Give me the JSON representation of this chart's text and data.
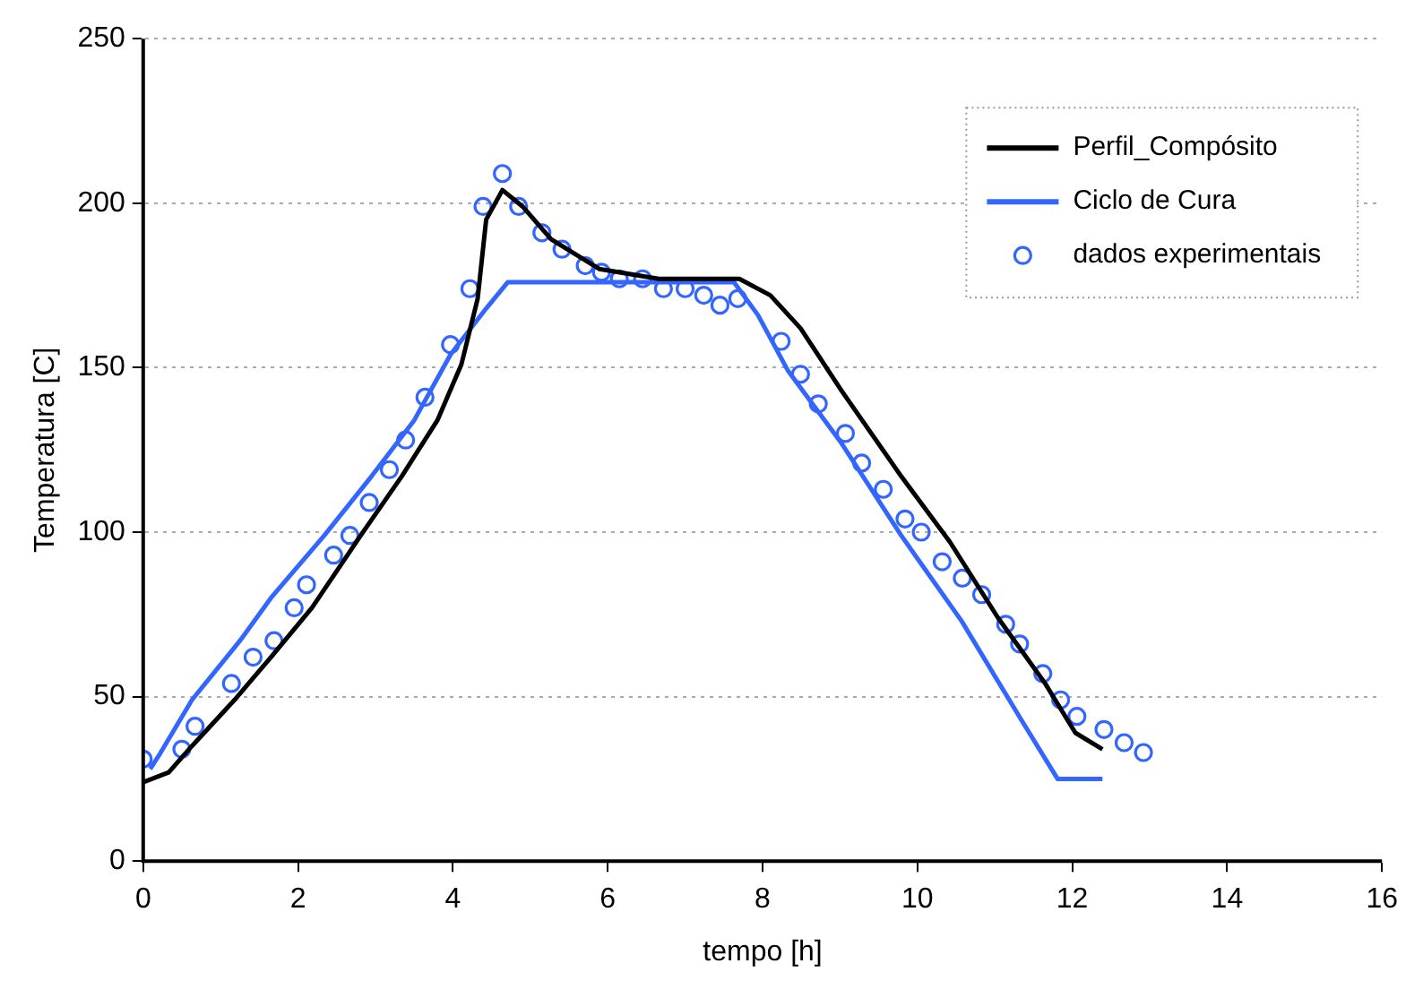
{
  "chart_data": {
    "type": "line",
    "xlabel": "tempo [h]",
    "ylabel": "Temperatura [C]",
    "xlim": [
      0,
      16
    ],
    "xticks": [
      0,
      2,
      4,
      6,
      8,
      10,
      12,
      14,
      16
    ],
    "ylim": [
      0,
      250
    ],
    "yticks": [
      0,
      50,
      100,
      150,
      200,
      250
    ],
    "grid": "y",
    "legend": "top right",
    "series": [
      {
        "name": "Perfil_Compósito",
        "color": "#000000",
        "marker": "none",
        "x": [
          0,
          0.33,
          0.63,
          1.18,
          1.65,
          2.18,
          2.81,
          3.34,
          3.8,
          4.11,
          4.32,
          4.43,
          4.64,
          4.9,
          5.27,
          5.89,
          6.66,
          7.7,
          8.1,
          8.49,
          9.02,
          9.79,
          10.42,
          11.04,
          11.65,
          12.04,
          12.39
        ],
        "values": [
          24,
          27,
          35,
          49,
          62,
          77,
          99,
          117,
          134,
          151,
          171,
          195,
          204,
          199,
          189,
          180,
          177,
          177,
          172,
          162,
          143,
          117,
          97,
          74,
          54,
          39,
          34
        ]
      },
      {
        "name": "Ciclo de Cura",
        "color": "#3366ff",
        "marker": "none",
        "x": [
          0.09,
          0.2,
          0.63,
          1.25,
          1.65,
          2.34,
          2.95,
          3.5,
          3.97,
          4.43,
          4.71,
          7.63,
          7.94,
          8.33,
          9.02,
          9.79,
          10.57,
          11.34,
          11.81,
          12.39
        ],
        "values": [
          28,
          32,
          49,
          67,
          80,
          99,
          117,
          134,
          154,
          168,
          176,
          176,
          166,
          149,
          127,
          99,
          73,
          43,
          25,
          25
        ]
      },
      {
        "name": "dados experimentais",
        "type": "scatter",
        "color": "#3366ff",
        "marker": "circle",
        "x": [
          0,
          0.5,
          0.67,
          1.14,
          1.42,
          1.69,
          1.95,
          2.11,
          2.46,
          2.67,
          2.92,
          3.18,
          3.39,
          3.64,
          3.97,
          4.22,
          4.39,
          4.64,
          4.85,
          5.15,
          5.41,
          5.71,
          5.92,
          6.15,
          6.45,
          6.72,
          7.0,
          7.24,
          7.45,
          7.68,
          8.24,
          8.49,
          8.72,
          9.07,
          9.28,
          9.56,
          9.84,
          10.05,
          10.32,
          10.58,
          10.83,
          11.14,
          11.32,
          11.62,
          11.85,
          12.06,
          12.41,
          12.67,
          12.92
        ],
        "values": [
          31,
          34,
          41,
          54,
          62,
          67,
          77,
          84,
          93,
          99,
          109,
          119,
          128,
          141,
          157,
          174,
          199,
          209,
          199,
          191,
          186,
          181,
          179,
          177,
          177,
          174,
          174,
          172,
          169,
          171,
          158,
          148,
          139,
          130,
          121,
          113,
          104,
          100,
          91,
          86,
          81,
          72,
          66,
          57,
          49,
          44,
          40,
          36,
          33
        ]
      }
    ]
  }
}
